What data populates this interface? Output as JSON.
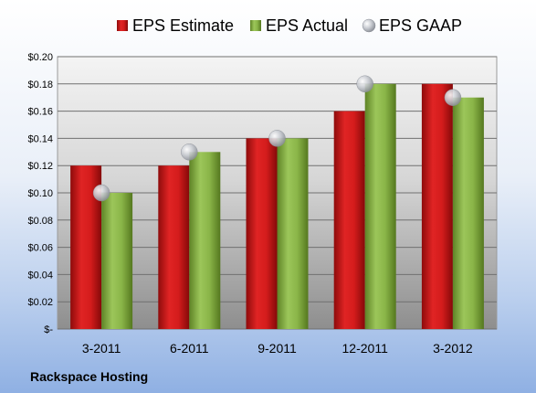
{
  "chart_data": {
    "type": "bar",
    "categories": [
      "3-2011",
      "6-2011",
      "9-2011",
      "12-2011",
      "3-2012"
    ],
    "series": [
      {
        "name": "EPS Estimate",
        "kind": "bar",
        "color": "#cc1a1a",
        "values": [
          0.12,
          0.12,
          0.14,
          0.16,
          0.18
        ]
      },
      {
        "name": "EPS Actual",
        "kind": "bar",
        "color": "#8cb84a",
        "values": [
          0.1,
          0.13,
          0.14,
          0.18,
          0.17
        ]
      },
      {
        "name": "EPS GAAP",
        "kind": "marker",
        "color": "#c8ccd4",
        "values": [
          0.1,
          0.13,
          0.14,
          0.18,
          0.17
        ]
      }
    ],
    "ylim": [
      0,
      0.2
    ],
    "y_ticks": [
      0,
      0.02,
      0.04,
      0.06,
      0.08,
      0.1,
      0.12,
      0.14,
      0.16,
      0.18,
      0.2
    ],
    "y_tick_labels": [
      "$-",
      "$0.02",
      "$0.04",
      "$0.06",
      "$0.08",
      "$0.10",
      "$0.12",
      "$0.14",
      "$0.16",
      "$0.18",
      "$0.20"
    ],
    "legend_position": "top",
    "grid": true,
    "source": "Rackspace Hosting"
  }
}
